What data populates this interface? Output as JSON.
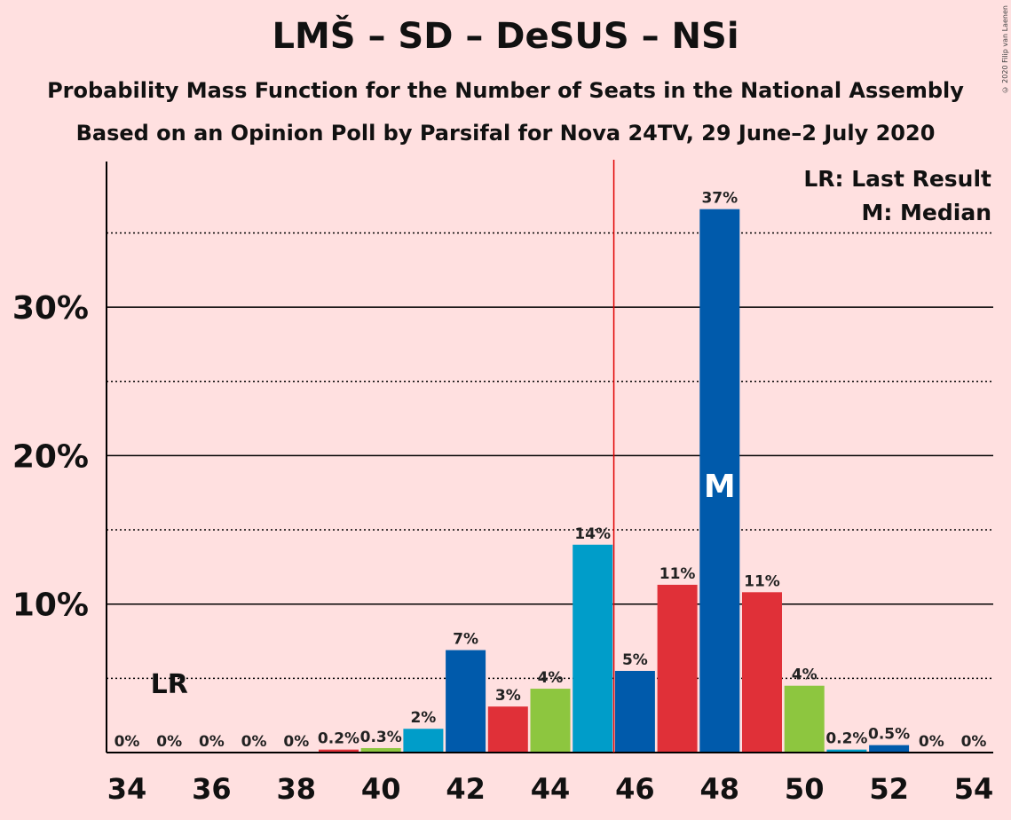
{
  "copyright": "© 2020 Filip van Laenen",
  "chart_data": {
    "type": "bar",
    "title": "LMŠ – SD – DeSUS – NSi",
    "subtitle": "Probability Mass Function for the Number of Seats in the National Assembly",
    "subtitle2": "Based on an Opinion Poll by Parsifal for Nova 24TV, 29 June–2 July 2020",
    "x": [
      34,
      35,
      36,
      37,
      38,
      39,
      40,
      41,
      42,
      43,
      44,
      45,
      46,
      47,
      48,
      49,
      50,
      51,
      52,
      53,
      54
    ],
    "values": [
      0,
      0,
      0,
      0,
      0,
      0.2,
      0.3,
      1.6,
      6.9,
      3.1,
      4.3,
      14.0,
      5.5,
      11.3,
      36.6,
      10.8,
      4.5,
      0.2,
      0.5,
      0,
      0
    ],
    "value_labels": [
      "0%",
      "0%",
      "0%",
      "0%",
      "0%",
      "0.2%",
      "0.3%",
      "2%",
      "7%",
      "3%",
      "4%",
      "14%",
      "5%",
      "11%",
      "37%",
      "11%",
      "4%",
      "0.2%",
      "0.5%",
      "0%",
      "0%"
    ],
    "bar_colors": [
      "#e03038",
      "#e03038",
      "#8dc63f",
      "#009dc9",
      "#005aab",
      "#e03038",
      "#8dc63f",
      "#009dc9",
      "#005aab",
      "#e03038",
      "#8dc63f",
      "#009dc9",
      "#005aab",
      "#e03038",
      "#005aab",
      "#e03038",
      "#8dc63f",
      "#009dc9",
      "#005aab",
      "#e03038",
      "#8dc63f"
    ],
    "x_ticks": [
      34,
      36,
      38,
      40,
      42,
      44,
      46,
      48,
      50,
      52,
      54
    ],
    "y_ticks": [
      {
        "value": 10,
        "label": "10%"
      },
      {
        "value": 20,
        "label": "20%"
      },
      {
        "value": 30,
        "label": "30%"
      }
    ],
    "y_minor_gridlines": [
      5,
      15,
      25,
      35
    ],
    "ylim": [
      0,
      40
    ],
    "majority_line_x": 45.5,
    "last_result": {
      "x": 35,
      "label": "LR"
    },
    "median": {
      "x": 48,
      "label": "M"
    },
    "legend": [
      "LR: Last Result",
      "M: Median"
    ],
    "legend_position": "top-right",
    "colors": {
      "background": "#ffe0e0",
      "majority_line": "#e00000",
      "gridline": "#000000"
    }
  }
}
